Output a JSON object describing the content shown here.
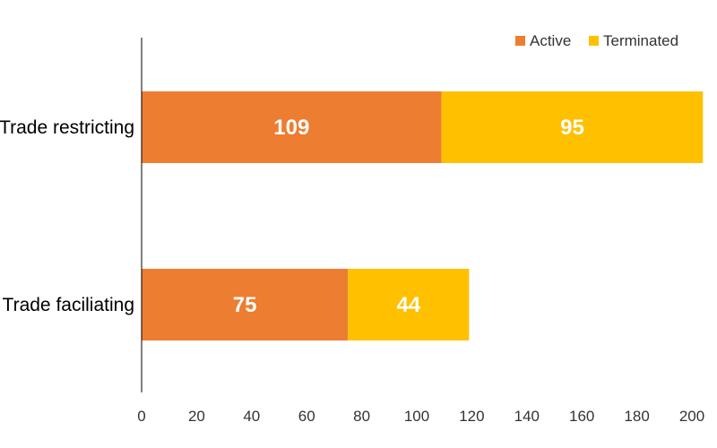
{
  "chart_data": {
    "type": "bar",
    "orientation": "horizontal",
    "stacked": true,
    "title": "",
    "xlabel": "",
    "ylabel": "",
    "categories": [
      "Trade restricting",
      "Trade faciliating"
    ],
    "series": [
      {
        "name": "Active",
        "color": "#ED7D31",
        "values": [
          109,
          75
        ]
      },
      {
        "name": "Terminated",
        "color": "#FFC000",
        "values": [
          95,
          44
        ]
      }
    ],
    "xlim": [
      0,
      200
    ],
    "xticks": [
      0,
      20,
      40,
      60,
      80,
      100,
      120,
      140,
      160,
      180,
      200
    ],
    "data_label_color": "#FFFFFF",
    "grid": false,
    "legend_position": "top-right"
  }
}
